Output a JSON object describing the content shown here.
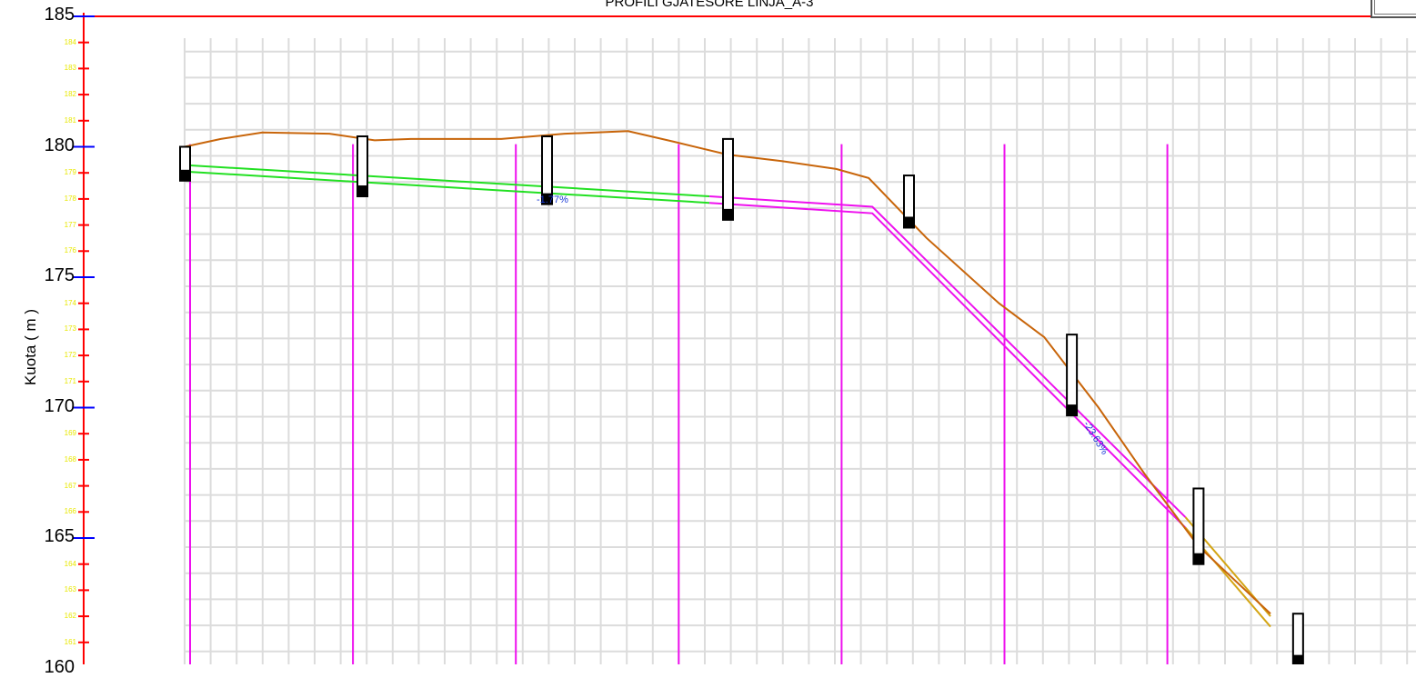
{
  "header": {
    "title": "PROFILI GJATESORE LINJA_A-3"
  },
  "axis": {
    "ylabel": "Kuota ( m )",
    "ylim": [
      160,
      185
    ],
    "major_ticks": [
      185,
      180,
      175,
      170,
      165,
      160
    ],
    "major_tick_labels": [
      "185",
      "180",
      "175",
      "170",
      "165",
      "160"
    ],
    "minor_ticks": [
      184,
      183,
      182,
      181,
      179,
      178,
      177,
      176,
      174,
      173,
      172,
      171,
      169,
      168,
      167,
      166,
      164,
      163,
      162,
      161
    ],
    "minor_tick_labels": [
      "184",
      "183",
      "182",
      "181",
      "179",
      "178",
      "177",
      "176",
      "174",
      "173",
      "172",
      "171",
      "169",
      "168",
      "167",
      "166",
      "164",
      "163",
      "162",
      "161"
    ]
  },
  "slope_labels": [
    {
      "text": "-1.77%"
    },
    {
      "text": "-23.63%"
    }
  ],
  "colors": {
    "ground": "#c8650a",
    "pipe_gentle": "#22e022",
    "pipe_steep": "#ee11ee",
    "pipe_end": "#d4a514",
    "station_lines": "#ee11ee",
    "grid": "#dcdcdc",
    "axis": "#ff0000",
    "major_tick": "#0000ff",
    "minor_tick": "#ff0000",
    "minor_tick_text": "#e8e800",
    "manhole_fill": "#000000"
  },
  "profile": {
    "ground": [
      {
        "x": 0,
        "y": 180.0
      },
      {
        "x": 20,
        "y": 180.3
      },
      {
        "x": 43,
        "y": 180.55
      },
      {
        "x": 80,
        "y": 180.5
      },
      {
        "x": 105,
        "y": 180.25
      },
      {
        "x": 125,
        "y": 180.3
      },
      {
        "x": 150,
        "y": 180.3
      },
      {
        "x": 175,
        "y": 180.3
      },
      {
        "x": 210,
        "y": 180.5
      },
      {
        "x": 245,
        "y": 180.6
      },
      {
        "x": 270,
        "y": 180.2
      },
      {
        "x": 300,
        "y": 179.7
      },
      {
        "x": 330,
        "y": 179.45
      },
      {
        "x": 360,
        "y": 179.15
      },
      {
        "x": 378,
        "y": 178.8
      },
      {
        "x": 410,
        "y": 176.5
      },
      {
        "x": 450,
        "y": 174.0
      },
      {
        "x": 475,
        "y": 172.7
      },
      {
        "x": 505,
        "y": 170.0
      },
      {
        "x": 530,
        "y": 167.5
      },
      {
        "x": 560,
        "y": 164.7
      },
      {
        "x": 600,
        "y": 162.1
      }
    ],
    "pipe_top": [
      {
        "x": 0,
        "y": 179.3
      },
      {
        "x": 290,
        "y": 178.1
      },
      {
        "x": 380,
        "y": 177.7
      },
      {
        "x": 553,
        "y": 165.8
      },
      {
        "x": 600,
        "y": 162.0
      }
    ],
    "pipe_bottom": [
      {
        "x": 0,
        "y": 179.05
      },
      {
        "x": 290,
        "y": 177.85
      },
      {
        "x": 380,
        "y": 177.45
      },
      {
        "x": 553,
        "y": 165.4
      },
      {
        "x": 600,
        "y": 161.6
      }
    ],
    "segment_breaks_x": [
      290,
      553
    ],
    "stations_x": [
      0,
      90,
      180,
      270,
      360,
      450,
      540
    ],
    "manholes": [
      {
        "x": 0,
        "top": 180.0,
        "bottom": 178.7
      },
      {
        "x": 98,
        "top": 180.4,
        "bottom": 178.1
      },
      {
        "x": 200,
        "top": 180.4,
        "bottom": 177.8
      },
      {
        "x": 300,
        "top": 180.3,
        "bottom": 177.2
      },
      {
        "x": 400,
        "top": 178.9,
        "bottom": 176.9
      },
      {
        "x": 490,
        "top": 172.8,
        "bottom": 169.7
      },
      {
        "x": 560,
        "top": 166.9,
        "bottom": 164.0
      },
      {
        "x": 615,
        "top": 162.1,
        "bottom": 160.1
      }
    ]
  }
}
